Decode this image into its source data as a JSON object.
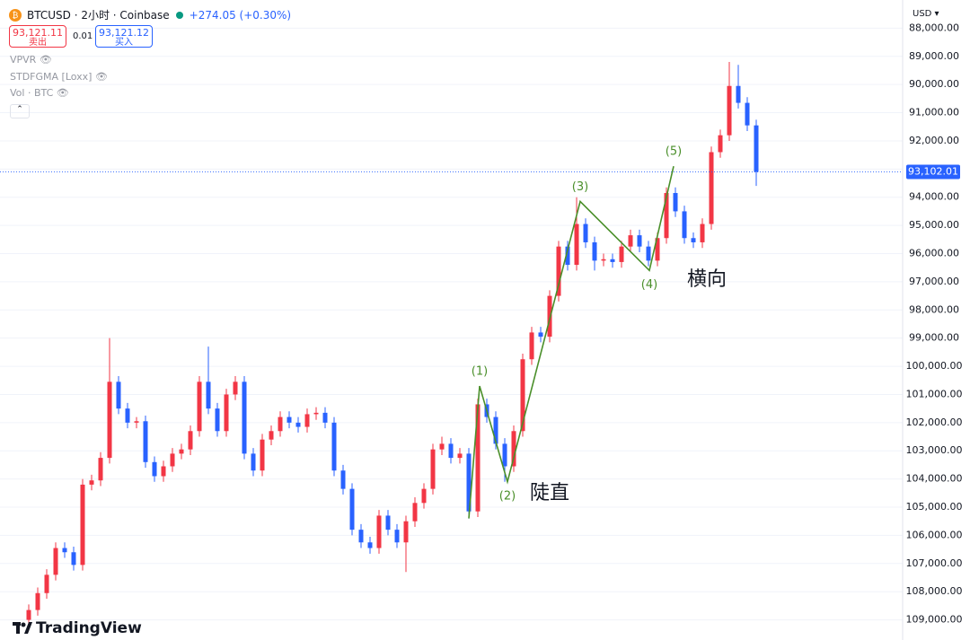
{
  "header": {
    "symbol": "BTCUSD · 2小时 · Coinbase",
    "change": "+274.05 (+0.30%)",
    "sell_price": "93,121.11",
    "sell_label": "卖出",
    "spread": "0.01",
    "buy_price": "93,121.12",
    "buy_label": "买入",
    "indicators": [
      "VPVR",
      "STDFGMA [Loxx]",
      "Vol · BTC"
    ],
    "currency": "USD",
    "brand": "TradingView"
  },
  "chart_data": {
    "type": "candlestick",
    "up_color": "#2962ff",
    "down_color": "#f23645",
    "inverted": true,
    "grid": true,
    "ylim": [
      87000,
      109300
    ],
    "yticks": [
      {
        "value": 88000,
        "label": "88,000.00"
      },
      {
        "value": 89000,
        "label": "89,000.00"
      },
      {
        "value": 90000,
        "label": "90,000.00"
      },
      {
        "value": 91000,
        "label": "91,000.00"
      },
      {
        "value": 92000,
        "label": "92,000.00"
      },
      {
        "value": 93000,
        "label": "93,000.00"
      },
      {
        "value": 94000,
        "label": "94,000.00"
      },
      {
        "value": 95000,
        "label": "95,000.00"
      },
      {
        "value": 96000,
        "label": "96,000.00"
      },
      {
        "value": 97000,
        "label": "97,000.00"
      },
      {
        "value": 98000,
        "label": "98,000.00"
      },
      {
        "value": 99000,
        "label": "99,000.00"
      },
      {
        "value": 100000,
        "label": "100,000.00"
      },
      {
        "value": 101000,
        "label": "101,000.00"
      },
      {
        "value": 102000,
        "label": "102,000.00"
      },
      {
        "value": 103000,
        "label": "103,000.00"
      },
      {
        "value": 104000,
        "label": "104,000.00"
      },
      {
        "value": 105000,
        "label": "105,000.00"
      },
      {
        "value": 106000,
        "label": "106,000.00"
      },
      {
        "value": 107000,
        "label": "107,000.00"
      },
      {
        "value": 108000,
        "label": "108,000.00"
      },
      {
        "value": 109000,
        "label": "109,000.00"
      }
    ],
    "last_price": {
      "value": 93102.01,
      "label": "93,102.01"
    },
    "candles": [
      [
        109000,
        109200,
        108450,
        108650
      ],
      [
        108650,
        108850,
        107850,
        108050
      ],
      [
        108050,
        108250,
        107200,
        107400
      ],
      [
        107400,
        107600,
        106250,
        106450
      ],
      [
        106450,
        106800,
        106250,
        106600
      ],
      [
        106600,
        107250,
        106400,
        107050
      ],
      [
        107050,
        107250,
        104000,
        104200
      ],
      [
        104200,
        104400,
        103850,
        104050
      ],
      [
        104050,
        104250,
        103050,
        103250
      ],
      [
        103250,
        103450,
        99000,
        100550
      ],
      [
        100550,
        101700,
        100350,
        101500
      ],
      [
        101500,
        102200,
        101300,
        102000
      ],
      [
        102000,
        102200,
        101800,
        101950
      ],
      [
        101950,
        103600,
        101750,
        103400
      ],
      [
        103400,
        104100,
        103200,
        103900
      ],
      [
        103900,
        104100,
        103350,
        103550
      ],
      [
        103550,
        103750,
        102900,
        103100
      ],
      [
        103100,
        103300,
        102750,
        102950
      ],
      [
        102950,
        103150,
        102100,
        102300
      ],
      [
        102300,
        102500,
        100350,
        100550
      ],
      [
        100550,
        101700,
        99300,
        101500
      ],
      [
        101500,
        102500,
        101300,
        102300
      ],
      [
        102300,
        102500,
        100800,
        101000
      ],
      [
        101000,
        101200,
        100350,
        100550
      ],
      [
        100550,
        103300,
        100350,
        103100
      ],
      [
        103100,
        103900,
        102900,
        103700
      ],
      [
        103700,
        103900,
        102400,
        102600
      ],
      [
        102600,
        102800,
        102100,
        102300
      ],
      [
        102300,
        102500,
        101600,
        101800
      ],
      [
        101800,
        102200,
        101600,
        102000
      ],
      [
        102000,
        102350,
        101800,
        102150
      ],
      [
        102150,
        102350,
        101500,
        101700
      ],
      [
        101700,
        101900,
        101450,
        101650
      ],
      [
        101650,
        102200,
        101450,
        102000
      ],
      [
        102000,
        103900,
        101800,
        103700
      ],
      [
        103700,
        104550,
        103500,
        104350
      ],
      [
        104350,
        106000,
        104150,
        105800
      ],
      [
        105800,
        106450,
        105600,
        106250
      ],
      [
        106250,
        106650,
        106050,
        106450
      ],
      [
        106450,
        106650,
        105100,
        105300
      ],
      [
        105300,
        106000,
        105100,
        105800
      ],
      [
        105800,
        106450,
        105600,
        106250
      ],
      [
        106250,
        107300,
        105300,
        105500
      ],
      [
        105500,
        105700,
        104650,
        104850
      ],
      [
        104850,
        105050,
        104150,
        104350
      ],
      [
        104350,
        104550,
        102750,
        102950
      ],
      [
        102950,
        103150,
        102500,
        102750
      ],
      [
        102750,
        103450,
        102550,
        103250
      ],
      [
        103250,
        103450,
        102900,
        103100
      ],
      [
        103100,
        105400,
        102900,
        105150
      ],
      [
        105150,
        105350,
        101150,
        101350
      ],
      [
        101350,
        102000,
        101150,
        101800
      ],
      [
        101800,
        102950,
        101600,
        102750
      ],
      [
        102750,
        104100,
        102550,
        103550
      ],
      [
        103550,
        103750,
        102100,
        102300
      ],
      [
        102300,
        102500,
        99550,
        99750
      ],
      [
        99750,
        99950,
        98600,
        98800
      ],
      [
        98800,
        99150,
        98600,
        98950
      ],
      [
        98950,
        99150,
        97300,
        97500
      ],
      [
        97500,
        97700,
        95550,
        95750
      ],
      [
        95750,
        96600,
        95550,
        96400
      ],
      [
        96400,
        96600,
        94000,
        94950
      ],
      [
        94950,
        95800,
        94750,
        95600
      ],
      [
        95600,
        96600,
        95400,
        96250
      ],
      [
        96250,
        96450,
        96000,
        96200
      ],
      [
        96200,
        96500,
        96000,
        96300
      ],
      [
        96300,
        96500,
        95550,
        95750
      ],
      [
        95750,
        95950,
        95150,
        95350
      ],
      [
        95350,
        95950,
        95150,
        95750
      ],
      [
        95750,
        96450,
        95550,
        96250
      ],
      [
        96250,
        96450,
        95250,
        95450
      ],
      [
        95450,
        95650,
        93650,
        93850
      ],
      [
        93850,
        94700,
        93650,
        94500
      ],
      [
        94500,
        95650,
        94300,
        95450
      ],
      [
        95450,
        95800,
        95250,
        95600
      ],
      [
        95600,
        95800,
        94750,
        94950
      ],
      [
        94950,
        95150,
        92200,
        92400
      ],
      [
        92400,
        92600,
        91600,
        91800
      ],
      [
        91800,
        92000,
        89200,
        90050
      ],
      [
        90050,
        90850,
        89300,
        90650
      ],
      [
        90650,
        91650,
        90450,
        91450
      ],
      [
        91450,
        93600,
        91250,
        93100
      ]
    ],
    "wave": {
      "color": "#4a8f2a",
      "x": [
        49,
        50.2,
        53.3,
        61.4,
        69.1,
        71.8
      ],
      "values": [
        105400,
        100700,
        104100,
        94150,
        96600,
        92900
      ],
      "labels": [
        "(1)",
        "(2)",
        "(3)",
        "(4)",
        "(5)"
      ]
    },
    "annotations": [
      "陡直",
      "横向"
    ]
  }
}
